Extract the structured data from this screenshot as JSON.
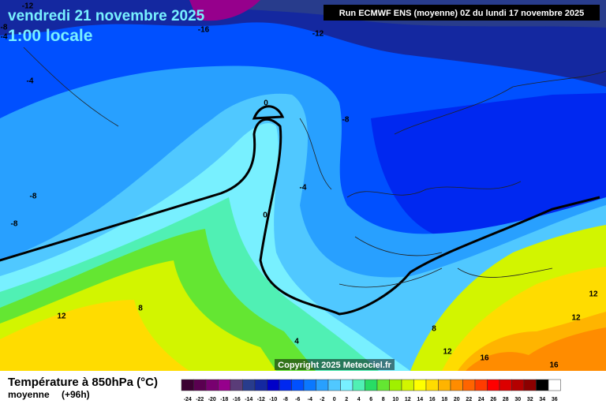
{
  "header": {
    "title": "vendredi 21 novembre 2025",
    "subtitle": "1:00 locale",
    "run": "Run ECMWF ENS (moyenne) 0Z du lundi 17 novembre 2025",
    "copyright": "Copyright 2025 Meteociel.fr"
  },
  "legend": {
    "title": "Température à 850hPa (°C)",
    "mode": "moyenne",
    "lead": "(+96h)",
    "ticks": [
      -24,
      -22,
      -20,
      -18,
      -16,
      -14,
      -12,
      -10,
      -8,
      -6,
      -4,
      -2,
      0,
      2,
      4,
      6,
      8,
      10,
      12,
      14,
      16,
      18,
      20,
      22,
      24,
      26,
      28,
      30,
      32,
      34,
      36
    ],
    "colors": [
      "#3c0032",
      "#5a0050",
      "#780070",
      "#96008c",
      "#5a3c78",
      "#283c8c",
      "#1428a0",
      "#0000c8",
      "#0028f0",
      "#0050ff",
      "#0a78ff",
      "#28a0ff",
      "#50c8ff",
      "#78f0ff",
      "#50f0b4",
      "#28dc64",
      "#64e632",
      "#a0f000",
      "#d2f500",
      "#ffff00",
      "#ffdc00",
      "#ffb400",
      "#ff8c00",
      "#ff6400",
      "#ff3c00",
      "#ff0000",
      "#dc0000",
      "#b40000",
      "#8c0000",
      "#000000",
      "#ffffff"
    ]
  },
  "contour_labels": [
    -12,
    -8,
    -4,
    -16,
    -12,
    -4,
    -8,
    -4,
    0,
    -8,
    -8,
    0,
    8,
    12,
    4,
    8,
    12,
    16,
    16,
    12,
    12
  ]
}
